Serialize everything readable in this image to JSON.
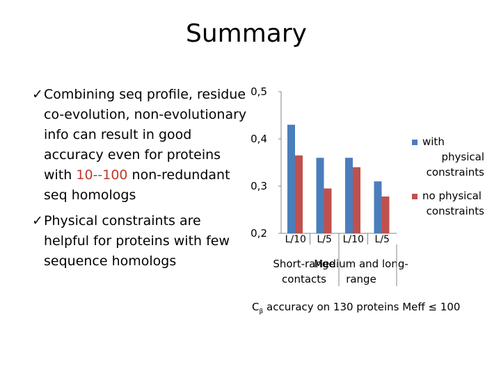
{
  "slide": {
    "title": "Summary",
    "bullets": [
      {
        "pre": "Combining seq profile, residue co-evolution, non-evolutionary info can result in good accuracy even for proteins with ",
        "highlight": "10--100",
        "post": " non-redundant seq homologs"
      },
      {
        "pre": "Physical constraints are helpful for proteins with few sequence homologs",
        "highlight": "",
        "post": ""
      }
    ],
    "check_icon": "checkmark-icon",
    "highlight_color": "#c0392b",
    "caption": {
      "prefix": "C",
      "subscript": "β",
      "text": " accuracy on 130 proteins Meff ≤ 100"
    }
  },
  "chart_data": {
    "type": "bar",
    "categories": [
      "L/10",
      "L/5",
      "L/10",
      "L/5"
    ],
    "groups": [
      {
        "label": "Short-range contacts",
        "categories": [
          0,
          1
        ]
      },
      {
        "label": "Medium and long-range",
        "categories": [
          2,
          3
        ]
      }
    ],
    "series": [
      {
        "name": "with physical constraints",
        "color": "#4a7ebb",
        "values": [
          0.43,
          0.36,
          0.36,
          0.31
        ]
      },
      {
        "name": "no physical constraints",
        "color": "#c0504d",
        "values": [
          0.365,
          0.295,
          0.34,
          0.278
        ]
      }
    ],
    "ylim": [
      0.2,
      0.5
    ],
    "yticks": [
      0.2,
      0.3,
      0.4,
      0.5
    ],
    "ytick_labels": [
      "0,2",
      "0,3",
      "0,4",
      "0,5"
    ],
    "grid": false,
    "legend": "right",
    "xlabel": "",
    "ylabel": ""
  }
}
